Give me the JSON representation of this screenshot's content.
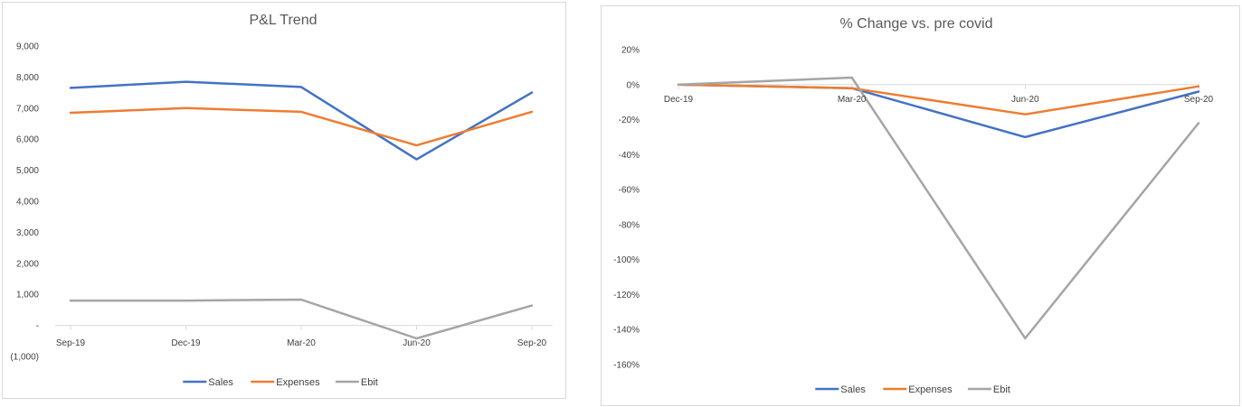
{
  "chart_data": [
    {
      "type": "line",
      "title": "P&L Trend",
      "categories": [
        "Sep-19",
        "Dec-19",
        "Mar-20",
        "Jun-20",
        "Sep-20"
      ],
      "ylim": [
        -1000,
        9000
      ],
      "y_ticks": [
        9000,
        8000,
        7000,
        6000,
        5000,
        4000,
        3000,
        2000,
        1000,
        0,
        -1000
      ],
      "y_tick_labels": [
        "9,000",
        "8,000",
        "7,000",
        "6,000",
        "5,000",
        "4,000",
        "3,000",
        "2,000",
        "1,000",
        "-",
        "(1,000)"
      ],
      "grid": false,
      "legend_position": "bottom",
      "series": [
        {
          "name": "Sales",
          "color": "#4472c4",
          "values": [
            7650,
            7850,
            7680,
            5350,
            7500
          ]
        },
        {
          "name": "Expenses",
          "color": "#ed7d31",
          "values": [
            6850,
            7000,
            6880,
            5800,
            6880
          ]
        },
        {
          "name": "Ebit",
          "color": "#a5a5a5",
          "values": [
            800,
            800,
            830,
            -420,
            640
          ]
        }
      ]
    },
    {
      "type": "line",
      "title": "% Change vs. pre covid",
      "categories": [
        "Dec-19",
        "Mar-20",
        "Jun-20",
        "Sep-20"
      ],
      "ylim": [
        -160,
        20
      ],
      "y_ticks": [
        20,
        0,
        -20,
        -40,
        -60,
        -80,
        -100,
        -120,
        -140,
        -160
      ],
      "y_tick_labels": [
        "20%",
        "0%",
        "-20%",
        "-40%",
        "-60%",
        "-80%",
        "-100%",
        "-120%",
        "-140%",
        "-160%"
      ],
      "grid": false,
      "legend_position": "bottom",
      "series": [
        {
          "name": "Sales",
          "color": "#4472c4",
          "values": [
            0,
            -2,
            -30,
            -4
          ]
        },
        {
          "name": "Expenses",
          "color": "#ed7d31",
          "values": [
            0,
            -2,
            -17,
            -1
          ]
        },
        {
          "name": "Ebit",
          "color": "#a5a5a5",
          "values": [
            0,
            4,
            -145,
            -22
          ]
        }
      ]
    }
  ]
}
